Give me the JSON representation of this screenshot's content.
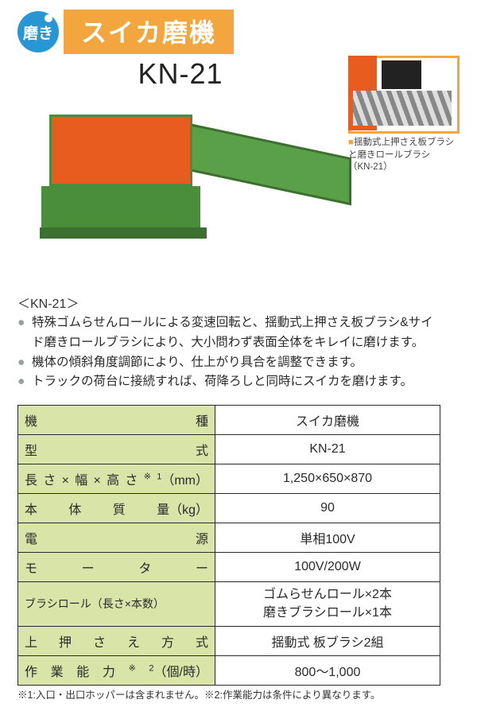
{
  "badge": {
    "label": "磨き",
    "bg": "#2896d4"
  },
  "title": {
    "text": "スイカ磨機",
    "bg": "#f4a63e"
  },
  "model": "KN-21",
  "inset": {
    "marker": "■",
    "caption_line1": "揺動式上押さえ板ブラシと磨きロールブラシ",
    "caption_line2": "（KN-21）",
    "border_color": "#f4a63e"
  },
  "machine_colors": {
    "body": "#e85d1f",
    "frame": "#4a8e3c",
    "conveyor": "#5aa048"
  },
  "section_label": "＜KN-21＞",
  "bullets": [
    "特殊ゴムらせんロールによる変速回転と、揺動式上押さえ板ブラシ&サイド磨きロールブラシにより、大小問わず表面全体をキレイに磨けます。",
    "機体の傾斜角度調節により、仕上がり具合を調整できます。",
    "トラックの荷台に接続すれば、荷降ろしと同時にスイカを磨けます。"
  ],
  "spec": {
    "header_bg": "#d9e4a8",
    "rows": [
      {
        "label": "機種",
        "unit": "",
        "value": "スイカ磨機"
      },
      {
        "label": "型式",
        "unit": "",
        "value": "KN-21"
      },
      {
        "label": "長さ×幅×高さ",
        "sup": "※1",
        "unit": "（mm）",
        "value": "1,250×650×870"
      },
      {
        "label": "本体質量",
        "unit": "（kg）",
        "value": "90"
      },
      {
        "label": "電源",
        "unit": "",
        "value": "単相100V"
      },
      {
        "label": "モーター",
        "unit": "",
        "value": "100V/200W"
      },
      {
        "label": "ブラシロール（長さ×本数）",
        "unit": "",
        "value": "ゴムらせんロール×2本\n磨きブラシロール×1本",
        "small": true
      },
      {
        "label": "上押さえ方式",
        "unit": "",
        "value": "揺動式 板ブラシ2組"
      },
      {
        "label": "作業能力",
        "sup": "※2",
        "unit": "（個/時）",
        "value": "800～1,000"
      }
    ]
  },
  "footnotes": "※1:入口・出口ホッパーは含まれません。※2:作業能力は条件により異なります。"
}
